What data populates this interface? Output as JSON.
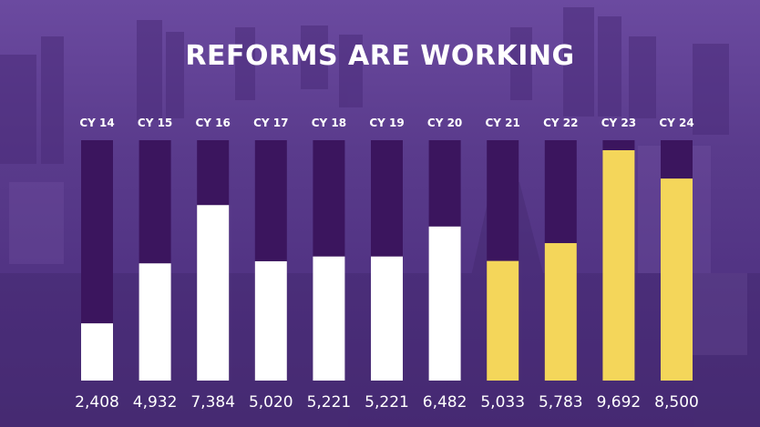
{
  "title": "REFORMS ARE WORKING",
  "colors": {
    "track": "#3b155e",
    "historic": "#ffffff",
    "recent": "#f4d65a",
    "label": "#ffffff"
  },
  "chart_data": {
    "type": "bar",
    "title": "REFORMS ARE WORKING",
    "xlabel": "",
    "ylabel": "",
    "categories": [
      "CY 14",
      "CY 15",
      "CY 16",
      "CY 17",
      "CY 18",
      "CY 19",
      "CY 20",
      "CY 21",
      "CY 22",
      "CY 23",
      "CY 24"
    ],
    "values": [
      2408,
      4932,
      7384,
      5020,
      5221,
      5221,
      6482,
      5033,
      5783,
      9692,
      8500
    ],
    "value_labels": [
      "2,408",
      "4,932",
      "7,384",
      "5,020",
      "5,221",
      "5,221",
      "6,482",
      "5,033",
      "5,783",
      "9,692",
      "8,500"
    ],
    "bar_colors": [
      "#ffffff",
      "#ffffff",
      "#ffffff",
      "#ffffff",
      "#ffffff",
      "#ffffff",
      "#ffffff",
      "#f4d65a",
      "#f4d65a",
      "#f4d65a",
      "#f4d65a"
    ],
    "ylim": [
      0,
      9692
    ],
    "grid": false,
    "legend": "none"
  }
}
